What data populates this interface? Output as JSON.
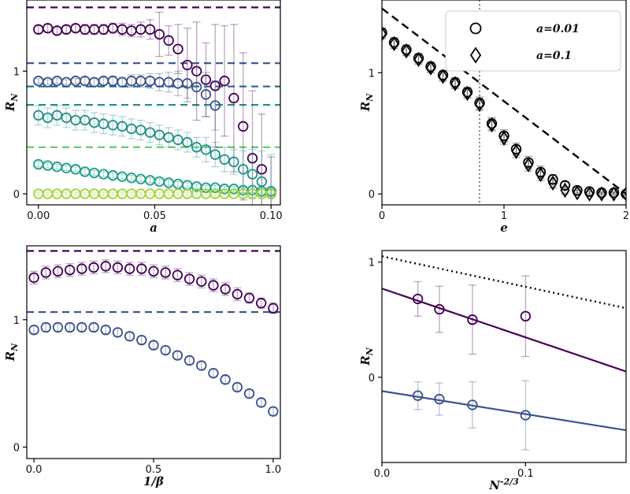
{
  "chart_data": [
    {
      "id": "tl",
      "type": "scatter",
      "xlabel": "a",
      "ylabel": "R_N",
      "xlim": [
        -0.005,
        0.104
      ],
      "ylim": [
        -0.09,
        1.58
      ],
      "xticks": [
        {
          "v": 0.0,
          "t": "0.00"
        },
        {
          "v": 0.05,
          "t": "0.05"
        },
        {
          "v": 0.1,
          "t": "0.10"
        }
      ],
      "yticks": [
        {
          "v": 0,
          "t": "0"
        },
        {
          "v": 1,
          "t": "1"
        }
      ],
      "hlines": [
        {
          "y": 1.52,
          "color": "#440154",
          "dash": "dashed"
        },
        {
          "y": 1.065,
          "color": "#3b528b",
          "dash": "dashed"
        },
        {
          "y": 0.875,
          "color": "#2c728e",
          "dash": "dashed"
        },
        {
          "y": 0.725,
          "color": "#21918c",
          "dash": "dashed"
        },
        {
          "y": 0.38,
          "color": "#5ec962",
          "dash": "dashed"
        }
      ],
      "series": [
        {
          "color": "#440154",
          "x": [
            0.0,
            0.004,
            0.008,
            0.012,
            0.016,
            0.02,
            0.024,
            0.028,
            0.032,
            0.036,
            0.04,
            0.044,
            0.048,
            0.052,
            0.056,
            0.06,
            0.064,
            0.068,
            0.072,
            0.076,
            0.08,
            0.084,
            0.088,
            0.092,
            0.096,
            0.1
          ],
          "y": [
            1.34,
            1.35,
            1.33,
            1.34,
            1.35,
            1.34,
            1.34,
            1.34,
            1.35,
            1.34,
            1.33,
            1.34,
            1.34,
            1.3,
            1.25,
            1.18,
            1.05,
            1.0,
            0.93,
            0.88,
            0.92,
            0.78,
            0.55,
            0.29,
            0.2,
            0.0
          ],
          "err": [
            0.03,
            0.03,
            0.03,
            0.03,
            0.03,
            0.04,
            0.04,
            0.04,
            0.04,
            0.05,
            0.05,
            0.06,
            0.08,
            0.18,
            0.12,
            0.2,
            0.3,
            0.4,
            0.3,
            0.5,
            0.45,
            0.6,
            0.6,
            0.55,
            0.45,
            0.3
          ]
        },
        {
          "color": "#3b528b",
          "x": [
            0.0,
            0.004,
            0.008,
            0.012,
            0.016,
            0.02,
            0.024,
            0.028,
            0.032,
            0.036,
            0.04,
            0.044,
            0.048,
            0.052,
            0.056,
            0.06,
            0.064,
            0.068,
            0.072,
            0.076
          ],
          "y": [
            0.92,
            0.91,
            0.92,
            0.91,
            0.92,
            0.92,
            0.91,
            0.92,
            0.92,
            0.91,
            0.92,
            0.92,
            0.92,
            0.91,
            0.91,
            0.9,
            0.9,
            0.87,
            0.81,
            0.72
          ],
          "err": [
            0.02,
            0.02,
            0.02,
            0.02,
            0.02,
            0.03,
            0.03,
            0.03,
            0.04,
            0.04,
            0.05,
            0.05,
            0.06,
            0.07,
            0.08,
            0.1,
            0.12,
            0.15,
            0.18,
            0.2
          ]
        },
        {
          "color": "#21918c",
          "x": [
            0.0,
            0.004,
            0.008,
            0.012,
            0.016,
            0.02,
            0.024,
            0.028,
            0.032,
            0.036,
            0.04,
            0.044,
            0.048,
            0.052,
            0.056,
            0.06,
            0.064,
            0.068,
            0.072,
            0.076,
            0.08,
            0.084,
            0.088,
            0.092,
            0.096,
            0.1
          ],
          "y": [
            0.64,
            0.62,
            0.64,
            0.62,
            0.6,
            0.6,
            0.58,
            0.57,
            0.56,
            0.55,
            0.53,
            0.52,
            0.5,
            0.48,
            0.46,
            0.44,
            0.42,
            0.38,
            0.36,
            0.32,
            0.28,
            0.26,
            0.2,
            0.16,
            0.1,
            0.02
          ],
          "err": [
            0.08,
            0.08,
            0.08,
            0.08,
            0.08,
            0.08,
            0.08,
            0.08,
            0.08,
            0.08,
            0.08,
            0.08,
            0.08,
            0.08,
            0.08,
            0.08,
            0.08,
            0.08,
            0.1,
            0.1,
            0.1,
            0.1,
            0.15,
            0.2,
            0.25,
            0.3
          ]
        },
        {
          "color": "#1f9e89",
          "x": [
            0.0,
            0.004,
            0.008,
            0.012,
            0.016,
            0.02,
            0.024,
            0.028,
            0.032,
            0.036,
            0.04,
            0.044,
            0.048,
            0.052,
            0.056,
            0.06,
            0.064,
            0.068,
            0.072,
            0.076,
            0.08,
            0.084,
            0.088,
            0.092,
            0.096,
            0.1
          ],
          "y": [
            0.24,
            0.23,
            0.22,
            0.21,
            0.2,
            0.18,
            0.17,
            0.16,
            0.15,
            0.14,
            0.13,
            0.12,
            0.11,
            0.1,
            0.09,
            0.08,
            0.07,
            0.06,
            0.05,
            0.05,
            0.04,
            0.04,
            0.03,
            0.03,
            0.02,
            0.02
          ],
          "err": [
            0.02,
            0.02,
            0.02,
            0.02,
            0.02,
            0.02,
            0.02,
            0.02,
            0.02,
            0.02,
            0.02,
            0.02,
            0.02,
            0.02,
            0.02,
            0.02,
            0.02,
            0.02,
            0.02,
            0.02,
            0.02,
            0.02,
            0.02,
            0.02,
            0.02,
            0.02
          ]
        },
        {
          "color": "#a0d43a",
          "x": [
            0.0,
            0.004,
            0.008,
            0.012,
            0.016,
            0.02,
            0.024,
            0.028,
            0.032,
            0.036,
            0.04,
            0.044,
            0.048,
            0.052,
            0.056,
            0.06,
            0.064,
            0.068,
            0.072,
            0.076,
            0.08,
            0.084,
            0.088,
            0.092,
            0.096,
            0.1
          ],
          "y": [
            0.0,
            0.0,
            0.0,
            0.0,
            0.0,
            0.0,
            0.0,
            0.0,
            0.0,
            0.0,
            0.0,
            0.0,
            0.0,
            0.0,
            0.0,
            0.0,
            0.0,
            0.0,
            0.0,
            0.0,
            0.0,
            0.0,
            0.0,
            0.0,
            0.0,
            0.0
          ],
          "err": [
            0.01,
            0.01,
            0.01,
            0.01,
            0.01,
            0.01,
            0.01,
            0.01,
            0.01,
            0.01,
            0.01,
            0.01,
            0.01,
            0.01,
            0.01,
            0.01,
            0.01,
            0.01,
            0.01,
            0.01,
            0.01,
            0.01,
            0.01,
            0.01,
            0.01,
            0.01
          ]
        }
      ]
    },
    {
      "id": "tr",
      "type": "scatter",
      "xlabel": "e",
      "ylabel": "R_N",
      "xlim": [
        0,
        2
      ],
      "ylim": [
        -0.09,
        1.6
      ],
      "xticks": [
        {
          "v": 0,
          "t": "0"
        },
        {
          "v": 1,
          "t": "1"
        },
        {
          "v": 2,
          "t": "2"
        }
      ],
      "yticks": [
        {
          "v": 0,
          "t": "0"
        },
        {
          "v": 1,
          "t": "1"
        }
      ],
      "legend": {
        "position": "top-right",
        "entries": [
          {
            "marker": "circle",
            "label": "a=0.01"
          },
          {
            "marker": "diamond",
            "label": "a=0.1"
          }
        ]
      },
      "ref_line": {
        "x": [
          0,
          2
        ],
        "y": [
          1.53,
          0
        ],
        "style": "dashed",
        "color": "#000000"
      },
      "vline": {
        "x": 0.8,
        "style": "dotted",
        "color": "#888888"
      },
      "series": [
        {
          "name": "a=0.01",
          "marker": "circle",
          "x": [
            0,
            0.1,
            0.2,
            0.3,
            0.4,
            0.5,
            0.6,
            0.7,
            0.8,
            0.9,
            1.0,
            1.1,
            1.2,
            1.3,
            1.4,
            1.5,
            1.6,
            1.7,
            1.8,
            1.9,
            2.0
          ],
          "y": [
            1.33,
            1.25,
            1.19,
            1.12,
            1.05,
            0.98,
            0.92,
            0.84,
            0.75,
            0.58,
            0.48,
            0.37,
            0.26,
            0.18,
            0.12,
            0.07,
            0.03,
            0.02,
            0.01,
            0.01,
            0.0
          ],
          "err": [
            0.04,
            0.04,
            0.04,
            0.04,
            0.04,
            0.04,
            0.04,
            0.04,
            0.05,
            0.05,
            0.05,
            0.05,
            0.05,
            0.05,
            0.04,
            0.03,
            0.02,
            0.02,
            0.01,
            0.01,
            0.01
          ]
        },
        {
          "name": "a=0.1",
          "marker": "diamond",
          "x": [
            0,
            0.1,
            0.2,
            0.3,
            0.4,
            0.5,
            0.6,
            0.7,
            0.8,
            0.9,
            1.0,
            1.1,
            1.2,
            1.3,
            1.4,
            1.5,
            1.6,
            1.7,
            1.8,
            1.9,
            2.0
          ],
          "y": [
            1.32,
            1.24,
            1.18,
            1.11,
            1.04,
            0.97,
            0.91,
            0.83,
            0.74,
            0.57,
            0.46,
            0.35,
            0.24,
            0.16,
            0.09,
            0.03,
            0.01,
            0.0,
            0.0,
            0.0,
            0.0
          ],
          "err": [
            0.04,
            0.04,
            0.04,
            0.04,
            0.04,
            0.04,
            0.04,
            0.04,
            0.05,
            0.05,
            0.05,
            0.05,
            0.05,
            0.05,
            0.04,
            0.03,
            0.02,
            0.02,
            0.01,
            0.01,
            0.01
          ]
        }
      ]
    },
    {
      "id": "bl",
      "type": "scatter",
      "xlabel": "1/β",
      "ylabel": "R_N",
      "xlim": [
        -0.03,
        1.03
      ],
      "ylim": [
        -0.09,
        1.58
      ],
      "xticks": [
        {
          "v": 0,
          "t": "0.0"
        },
        {
          "v": 0.5,
          "t": "0.5"
        },
        {
          "v": 1.0,
          "t": "1.0"
        }
      ],
      "yticks": [
        {
          "v": 0,
          "t": "0"
        },
        {
          "v": 1,
          "t": "1"
        }
      ],
      "hlines": [
        {
          "y": 1.54,
          "color": "#440154",
          "dash": "dashed"
        },
        {
          "y": 1.06,
          "color": "#3b528b",
          "dash": "dashed"
        }
      ],
      "series": [
        {
          "color": "#440154",
          "x": [
            0.0,
            0.05,
            0.1,
            0.15,
            0.2,
            0.25,
            0.3,
            0.35,
            0.4,
            0.45,
            0.5,
            0.55,
            0.6,
            0.65,
            0.7,
            0.75,
            0.8,
            0.85,
            0.9,
            0.95,
            1.0
          ],
          "y": [
            1.33,
            1.37,
            1.38,
            1.39,
            1.4,
            1.41,
            1.42,
            1.41,
            1.4,
            1.4,
            1.38,
            1.37,
            1.35,
            1.32,
            1.3,
            1.27,
            1.24,
            1.2,
            1.17,
            1.13,
            1.09
          ],
          "err": [
            0.05,
            0.05,
            0.05,
            0.05,
            0.05,
            0.05,
            0.05,
            0.05,
            0.05,
            0.05,
            0.05,
            0.05,
            0.05,
            0.05,
            0.05,
            0.05,
            0.05,
            0.05,
            0.04,
            0.04,
            0.04
          ]
        },
        {
          "color": "#3b528b",
          "x": [
            0.0,
            0.05,
            0.1,
            0.15,
            0.2,
            0.25,
            0.3,
            0.35,
            0.4,
            0.45,
            0.5,
            0.55,
            0.6,
            0.65,
            0.7,
            0.75,
            0.8,
            0.85,
            0.9,
            0.95,
            1.0
          ],
          "y": [
            0.92,
            0.94,
            0.94,
            0.94,
            0.94,
            0.94,
            0.92,
            0.9,
            0.87,
            0.84,
            0.8,
            0.76,
            0.72,
            0.68,
            0.64,
            0.58,
            0.53,
            0.47,
            0.42,
            0.35,
            0.28
          ],
          "err": [
            0.03,
            0.03,
            0.03,
            0.03,
            0.03,
            0.03,
            0.03,
            0.03,
            0.03,
            0.03,
            0.03,
            0.03,
            0.03,
            0.03,
            0.03,
            0.03,
            0.03,
            0.03,
            0.03,
            0.03,
            0.03
          ]
        }
      ]
    },
    {
      "id": "br",
      "type": "scatter",
      "xlabel": "N^-2/3",
      "ylabel": "R_N",
      "xlim": [
        0,
        0.17
      ],
      "ylim": [
        -0.74,
        1.1
      ],
      "xticks": [
        {
          "v": 0,
          "t": "0.0"
        },
        {
          "v": 0.1,
          "t": "0.1"
        }
      ],
      "yticks": [
        {
          "v": 0,
          "t": "0"
        },
        {
          "v": 1,
          "t": "1"
        }
      ],
      "ref_line": {
        "x": [
          0,
          0.17
        ],
        "y": [
          1.05,
          0.6
        ],
        "style": "dotted",
        "color": "#000000"
      },
      "series": [
        {
          "color": "#440154",
          "x": [
            0.025,
            0.04,
            0.063,
            0.1
          ],
          "y": [
            0.68,
            0.59,
            0.5,
            0.53
          ],
          "err": [
            0.15,
            0.2,
            0.3,
            0.35
          ],
          "fit": {
            "x": [
              0,
              0.17
            ],
            "y": [
              0.77,
              0.05
            ]
          }
        },
        {
          "color": "#3b528b",
          "x": [
            0.025,
            0.04,
            0.063,
            0.1
          ],
          "y": [
            -0.16,
            -0.19,
            -0.24,
            -0.33
          ],
          "err": [
            0.12,
            0.14,
            0.2,
            0.3
          ],
          "fit": {
            "x": [
              0,
              0.17
            ],
            "y": [
              -0.12,
              -0.46
            ]
          }
        }
      ]
    }
  ]
}
